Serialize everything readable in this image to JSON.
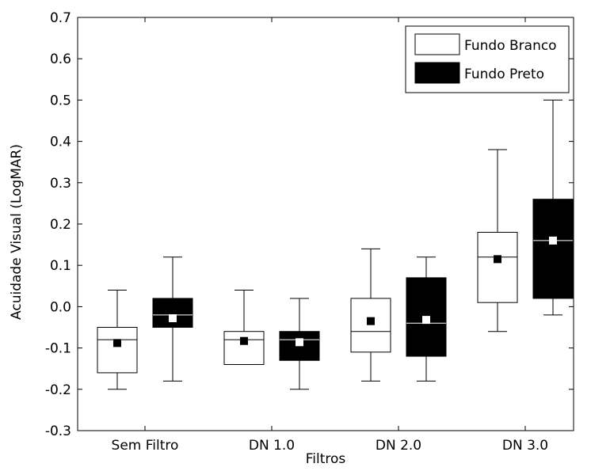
{
  "chart_data": {
    "type": "boxplot",
    "title": "",
    "xlabel": "Filtros",
    "ylabel": "Acuidade Visual (LogMAR)",
    "ylim": [
      -0.3,
      0.7
    ],
    "yticks": [
      "-0.3",
      "-0.2",
      "-0.1",
      "0.0",
      "0.1",
      "0.2",
      "0.3",
      "0.4",
      "0.5",
      "0.6",
      "0.7"
    ],
    "categories": [
      "Sem Filtro",
      "DN 1.0",
      "DN 2.0",
      "DN 3.0"
    ],
    "grid": false,
    "legend_position": "top-right",
    "series": [
      {
        "name": "Fundo Branco",
        "box_fill": "#ffffff",
        "median_color": "#000000",
        "mean_marker_color": "#000000",
        "boxes": [
          {
            "min": -0.2,
            "q1": -0.16,
            "median": -0.08,
            "q3": -0.05,
            "max": 0.04,
            "mean": -0.088
          },
          {
            "min": -0.14,
            "q1": -0.14,
            "median": -0.08,
            "q3": -0.06,
            "max": 0.04,
            "mean": -0.083
          },
          {
            "min": -0.18,
            "q1": -0.11,
            "median": -0.06,
            "q3": 0.02,
            "max": 0.14,
            "mean": -0.035
          },
          {
            "min": -0.06,
            "q1": 0.01,
            "median": 0.12,
            "q3": 0.18,
            "max": 0.38,
            "mean": 0.115
          }
        ]
      },
      {
        "name": "Fundo Preto",
        "box_fill": "#000000",
        "median_color": "#ffffff",
        "mean_marker_color": "#ffffff",
        "boxes": [
          {
            "min": -0.18,
            "q1": -0.05,
            "median": -0.02,
            "q3": 0.02,
            "max": 0.12,
            "mean": -0.028
          },
          {
            "min": -0.2,
            "q1": -0.13,
            "median": -0.08,
            "q3": -0.06,
            "max": 0.02,
            "mean": -0.086
          },
          {
            "min": -0.18,
            "q1": -0.12,
            "median": -0.04,
            "q3": 0.07,
            "max": 0.12,
            "mean": -0.032
          },
          {
            "min": -0.02,
            "q1": 0.02,
            "median": 0.16,
            "q3": 0.26,
            "max": 0.5,
            "mean": 0.16
          }
        ]
      }
    ]
  }
}
